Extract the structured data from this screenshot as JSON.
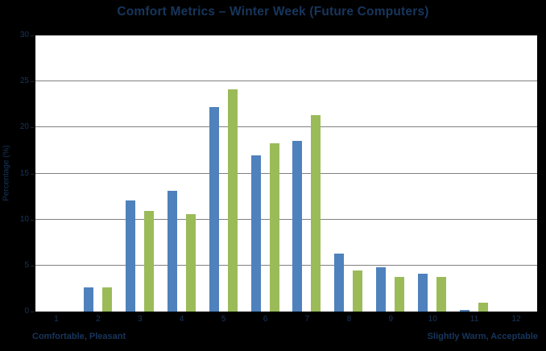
{
  "colors": {
    "figure_background": "#000000",
    "plot_background": "#ffffff",
    "gridline": "#808080",
    "axis_line": "#000000",
    "text": "#17365d",
    "bar_blue": "#4f81bd",
    "bar_green": "#9bbb59"
  },
  "chart_data": {
    "type": "bar",
    "title": "Comfort Metrics – Winter Week (Future Computers)",
    "ylabel": "Percentage (%)",
    "xlabel_left": "Comfortable, Pleasant",
    "xlabel_right": "Slightly Warm, Acceptable",
    "categories": [
      "1",
      "2",
      "3",
      "4",
      "5",
      "6",
      "7",
      "8",
      "9",
      "10",
      "11",
      "12"
    ],
    "series": [
      {
        "name": "blue-series",
        "color": "#4f81bd",
        "values": [
          0,
          2.6,
          12.1,
          13.1,
          22.2,
          17.0,
          18.5,
          6.3,
          4.8,
          4.1,
          0.2,
          0
        ]
      },
      {
        "name": "green-series",
        "color": "#9bbb59",
        "values": [
          0,
          2.6,
          10.9,
          10.6,
          24.1,
          18.3,
          21.3,
          4.5,
          3.8,
          3.8,
          1.0,
          0
        ]
      }
    ],
    "ylim": [
      0,
      30
    ],
    "yticks": [
      0,
      5,
      10,
      15,
      20,
      25,
      30
    ],
    "ytick_interval": 5,
    "grid": true,
    "legend": "none"
  }
}
